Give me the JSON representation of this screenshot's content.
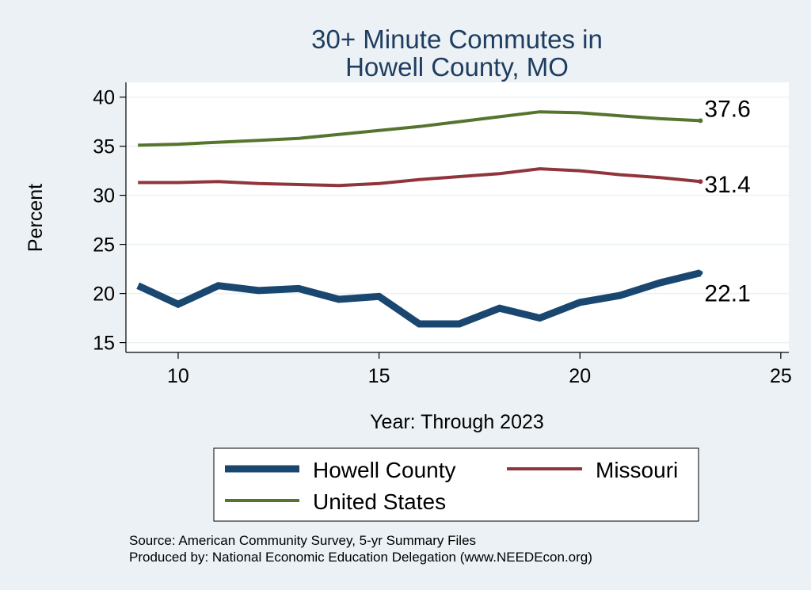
{
  "chart_data": {
    "type": "line",
    "title_lines": [
      "30+ Minute Commutes in",
      "Howell County, MO"
    ],
    "xlabel": "Year: Through 2023",
    "ylabel": "Percent",
    "xlim": [
      8.7,
      25.2
    ],
    "ylim": [
      14.0,
      41.5
    ],
    "xticks": [
      10,
      15,
      20,
      25
    ],
    "yticks": [
      15,
      20,
      25,
      30,
      35,
      40
    ],
    "grid": true,
    "legend_position": "bottom",
    "series": [
      {
        "name": "Howell County",
        "color": "#1a476f",
        "width": 9,
        "end_label": "22.1",
        "points": [
          [
            9,
            20.8
          ],
          [
            10,
            18.9
          ],
          [
            11,
            20.8
          ],
          [
            12,
            20.3
          ],
          [
            13,
            20.5
          ],
          [
            14,
            19.4
          ],
          [
            15,
            19.7
          ],
          [
            16,
            16.9
          ],
          [
            17,
            16.9
          ],
          [
            18,
            18.5
          ],
          [
            19,
            17.5
          ],
          [
            20,
            19.1
          ],
          [
            21,
            19.8
          ],
          [
            22,
            21.1
          ],
          [
            23,
            22.1
          ]
        ]
      },
      {
        "name": "Missouri",
        "color": "#90353b",
        "width": 4,
        "end_label": "31.4",
        "points": [
          [
            9,
            31.3
          ],
          [
            10,
            31.3
          ],
          [
            11,
            31.4
          ],
          [
            12,
            31.2
          ],
          [
            13,
            31.1
          ],
          [
            14,
            31.0
          ],
          [
            15,
            31.2
          ],
          [
            16,
            31.6
          ],
          [
            17,
            31.9
          ],
          [
            18,
            32.2
          ],
          [
            19,
            32.7
          ],
          [
            20,
            32.5
          ],
          [
            21,
            32.1
          ],
          [
            22,
            31.8
          ],
          [
            23,
            31.4
          ]
        ]
      },
      {
        "name": "United States",
        "color": "#55752f",
        "width": 4,
        "end_label": "37.6",
        "points": [
          [
            9,
            35.1
          ],
          [
            10,
            35.2
          ],
          [
            11,
            35.4
          ],
          [
            12,
            35.6
          ],
          [
            13,
            35.8
          ],
          [
            14,
            36.2
          ],
          [
            15,
            36.6
          ],
          [
            16,
            37.0
          ],
          [
            17,
            37.5
          ],
          [
            18,
            38.0
          ],
          [
            19,
            38.5
          ],
          [
            20,
            38.4
          ],
          [
            21,
            38.1
          ],
          [
            22,
            37.8
          ],
          [
            23,
            37.6
          ]
        ]
      }
    ],
    "source_lines": [
      "Source: American Community Survey, 5-yr Summary Files",
      "Produced by: National Economic Education Delegation (www.NEEDEcon.org)"
    ]
  }
}
